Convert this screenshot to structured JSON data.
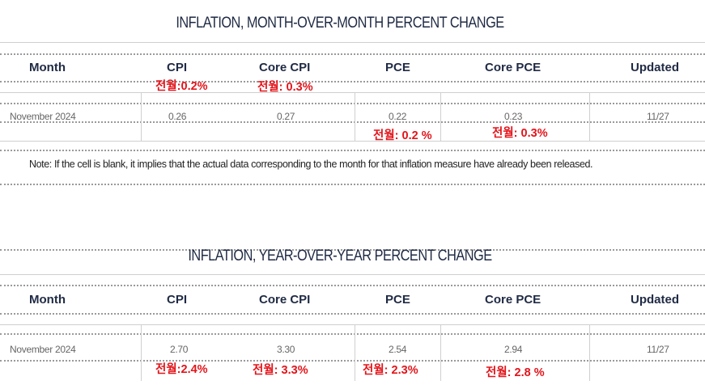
{
  "mom": {
    "title": "INFLATION, MONTH-OVER-MONTH PERCENT CHANGE",
    "headers": [
      "Month",
      "CPI",
      "Core CPI",
      "PCE",
      "Core PCE",
      "Updated"
    ],
    "row": [
      "November 2024",
      "0.26",
      "0.27",
      "0.22",
      "0.23",
      "11/27"
    ],
    "annotations": {
      "cpi": "전월:0.2%",
      "core_cpi": "전월: 0.3%",
      "pce": "전월: 0.2 %",
      "core_pce": "전월: 0.3%"
    }
  },
  "note": "Note: If the cell is blank, it implies that the actual data corresponding to the month for that inflation measure have already been released.",
  "yoy": {
    "title": "INFLATION, YEAR-OVER-YEAR PERCENT CHANGE",
    "headers": [
      "Month",
      "CPI",
      "Core CPI",
      "PCE",
      "Core PCE",
      "Updated"
    ],
    "row": [
      "November 2024",
      "2.70",
      "3.30",
      "2.54",
      "2.94",
      "11/27"
    ],
    "annotations": {
      "cpi": "전월:2.4%",
      "core_cpi": "전월: 3.3%",
      "pce": "전월: 2.3%",
      "core_pce": "전월: 2.8 %"
    }
  },
  "colors": {
    "heading": "#1f2a44",
    "annotation": "#e3141a",
    "cell_text": "#666666",
    "rule": "#cfcfcf"
  }
}
